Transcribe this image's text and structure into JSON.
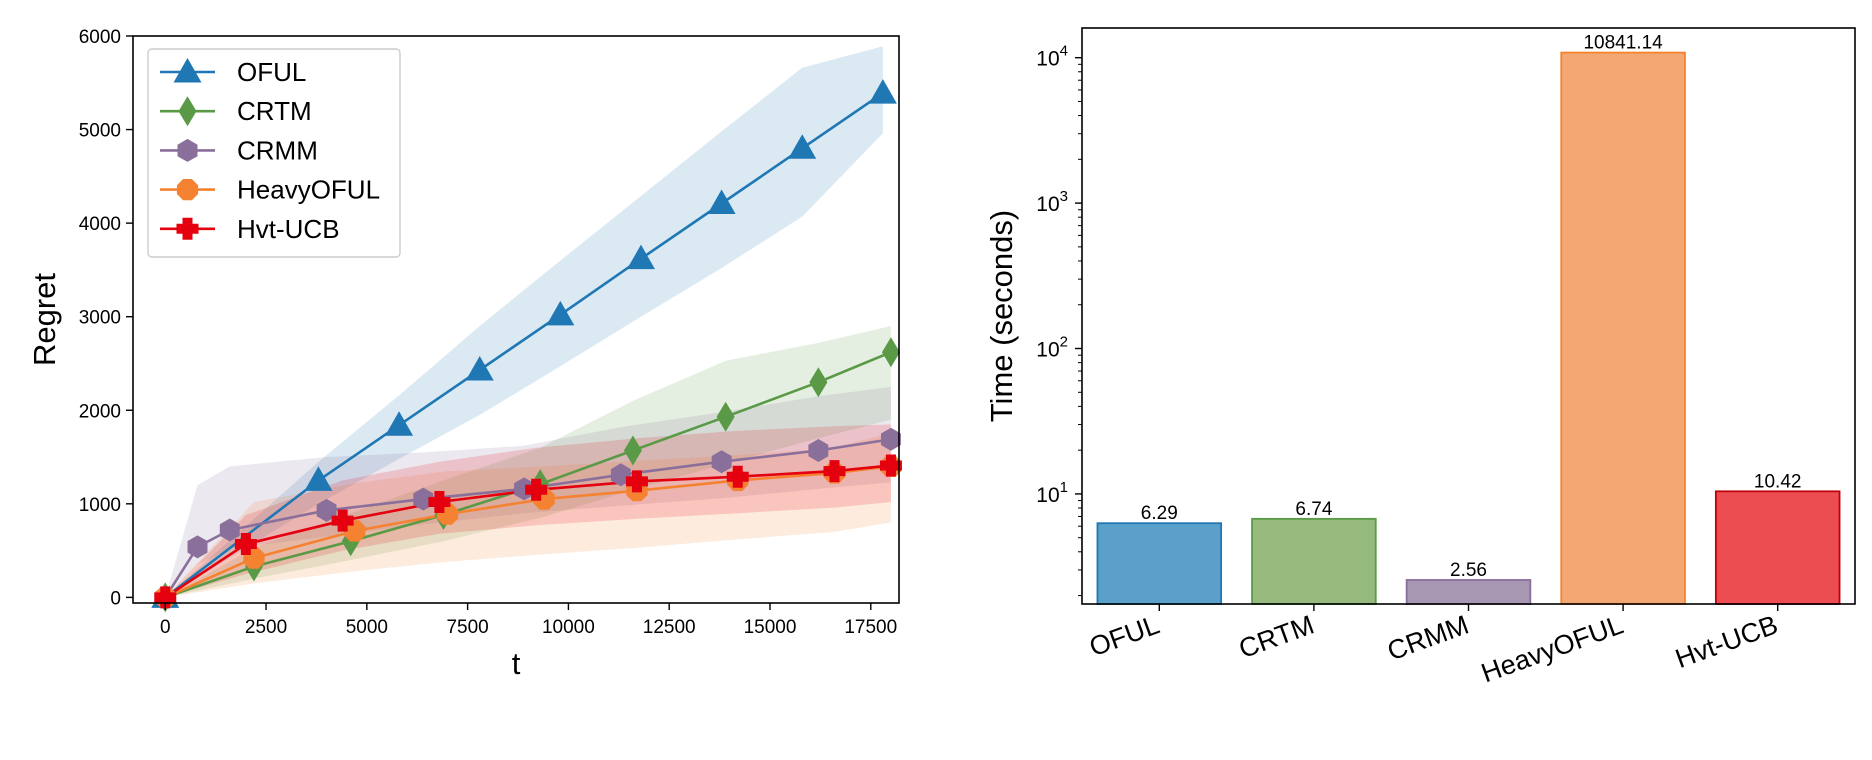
{
  "chart_data": [
    {
      "type": "line",
      "xlabel": "t",
      "ylabel": "Regret",
      "xlim": [
        -800,
        18200
      ],
      "ylim": [
        -60,
        6000
      ],
      "xticks": [
        0,
        2500,
        5000,
        7500,
        10000,
        12500,
        15000,
        17500
      ],
      "yticks": [
        0,
        1000,
        2000,
        3000,
        4000,
        5000,
        6000
      ],
      "legend_position": "top-left",
      "grid": false,
      "series": [
        {
          "name": "OFUL",
          "color": "#1f77b4",
          "marker": "triangle",
          "x": [
            0,
            3800,
            5800,
            7800,
            9800,
            11800,
            13800,
            15800,
            17800
          ],
          "y": [
            0,
            1250,
            1840,
            2430,
            3020,
            3620,
            4210,
            4800,
            5390
          ],
          "band_low": [
            0,
            1000,
            1480,
            1950,
            2470,
            3000,
            3520,
            4070,
            4960
          ],
          "band_high": [
            0,
            1450,
            2160,
            2900,
            3600,
            4290,
            4980,
            5660,
            5890
          ]
        },
        {
          "name": "CRTM",
          "color": "#5a9a47",
          "marker": "diamond",
          "x": [
            0,
            2200,
            4600,
            6900,
            9300,
            11600,
            13900,
            16200,
            18000
          ],
          "y": [
            0,
            330,
            600,
            880,
            1210,
            1570,
            1930,
            2300,
            2620
          ],
          "band_low": [
            0,
            200,
            400,
            600,
            850,
            1150,
            1430,
            1700,
            1900
          ],
          "band_high": [
            0,
            530,
            900,
            1250,
            1600,
            2100,
            2530,
            2720,
            2900
          ]
        },
        {
          "name": "CRMM",
          "color": "#8a6f9a",
          "marker": "hexagon",
          "x": [
            0,
            800,
            1600,
            4000,
            6400,
            8900,
            11300,
            13800,
            16200,
            18000
          ],
          "y": [
            0,
            540,
            720,
            930,
            1050,
            1160,
            1310,
            1450,
            1570,
            1690
          ],
          "band_low": [
            0,
            350,
            520,
            650,
            780,
            900,
            980,
            1060,
            1160,
            1230
          ],
          "band_high": [
            0,
            1200,
            1400,
            1500,
            1550,
            1620,
            1820,
            1980,
            2150,
            2250
          ]
        },
        {
          "name": "HeavyOFUL",
          "color": "#f58230",
          "marker": "octagon",
          "x": [
            0,
            2200,
            4700,
            7000,
            9400,
            11700,
            14200,
            16600,
            18000
          ],
          "y": [
            0,
            420,
            710,
            890,
            1050,
            1140,
            1250,
            1330,
            1400
          ],
          "band_low": [
            0,
            150,
            280,
            380,
            460,
            530,
            620,
            700,
            800
          ],
          "band_high": [
            0,
            1020,
            1220,
            1350,
            1400,
            1460,
            1520,
            1600,
            1760
          ]
        },
        {
          "name": "Hvt-UCB",
          "color": "#e4000f",
          "marker": "plus",
          "x": [
            0,
            2000,
            4400,
            6800,
            9200,
            11700,
            14200,
            16600,
            18000
          ],
          "y": [
            0,
            570,
            820,
            1020,
            1150,
            1240,
            1290,
            1350,
            1410
          ],
          "band_low": [
            0,
            250,
            500,
            680,
            770,
            840,
            900,
            960,
            1020
          ],
          "band_high": [
            0,
            880,
            1250,
            1450,
            1600,
            1700,
            1780,
            1830,
            1850
          ]
        }
      ]
    },
    {
      "type": "bar",
      "ylabel": "Time (seconds)",
      "yscale": "log",
      "ylim": [
        1.75,
        16000
      ],
      "ytick_labels": [
        {
          "value": 10,
          "base": "10",
          "exp": "1"
        },
        {
          "value": 100,
          "base": "10",
          "exp": "2"
        },
        {
          "value": 1000,
          "base": "10",
          "exp": "3"
        },
        {
          "value": 10000,
          "base": "10",
          "exp": "4"
        }
      ],
      "categories": [
        "OFUL",
        "CRTM",
        "CRMM",
        "HeavyOFUL",
        "Hvt-UCB"
      ],
      "values": [
        6.29,
        6.74,
        2.56,
        10841.14,
        10.42
      ],
      "value_labels": [
        "6.29",
        "6.74",
        "2.56",
        "10841.14",
        "10.42"
      ],
      "fill_colors": [
        "#5aa0c8",
        "#96ba7d",
        "#a897b3",
        "#f3a772",
        "#ec4d50"
      ],
      "edge_colors": [
        "#1f77b4",
        "#5a9a47",
        "#8a6f9a",
        "#f58230",
        "#c0000c"
      ],
      "legend_position": "none",
      "grid": false
    }
  ]
}
